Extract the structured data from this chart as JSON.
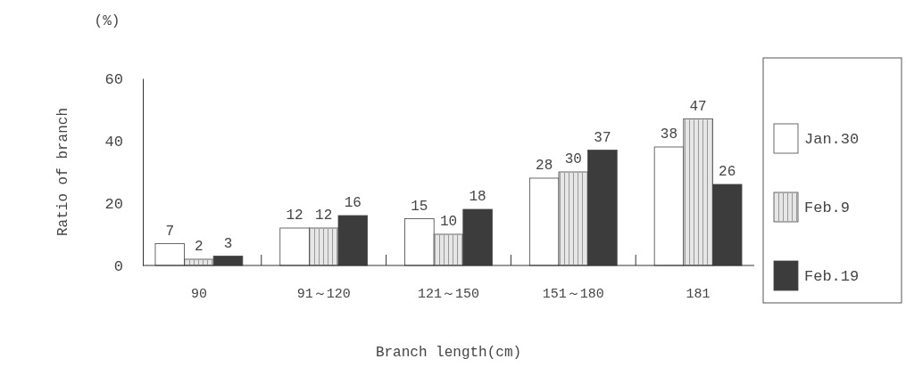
{
  "chart_data": {
    "type": "bar",
    "xlabel": "Branch length(cm)",
    "ylabel": "Ratio of branch",
    "annotations": [
      "(%)"
    ],
    "categories": [
      "90",
      "91～120",
      "121～150",
      "151～180",
      "181"
    ],
    "series": [
      {
        "name": "Jan.30",
        "color": "#ffffff",
        "values": [
          7,
          12,
          15,
          28,
          38
        ]
      },
      {
        "name": "Feb.9",
        "color": "#e6e6e6",
        "values": [
          2,
          12,
          10,
          30,
          47
        ]
      },
      {
        "name": "Feb.19",
        "color": "#3c3c3c",
        "values": [
          3,
          16,
          18,
          37,
          26
        ]
      }
    ],
    "ylim": [
      0,
      60
    ],
    "yticks": [
      0,
      20,
      40,
      60
    ],
    "data_labels": true,
    "legend": "right",
    "grid": false
  }
}
